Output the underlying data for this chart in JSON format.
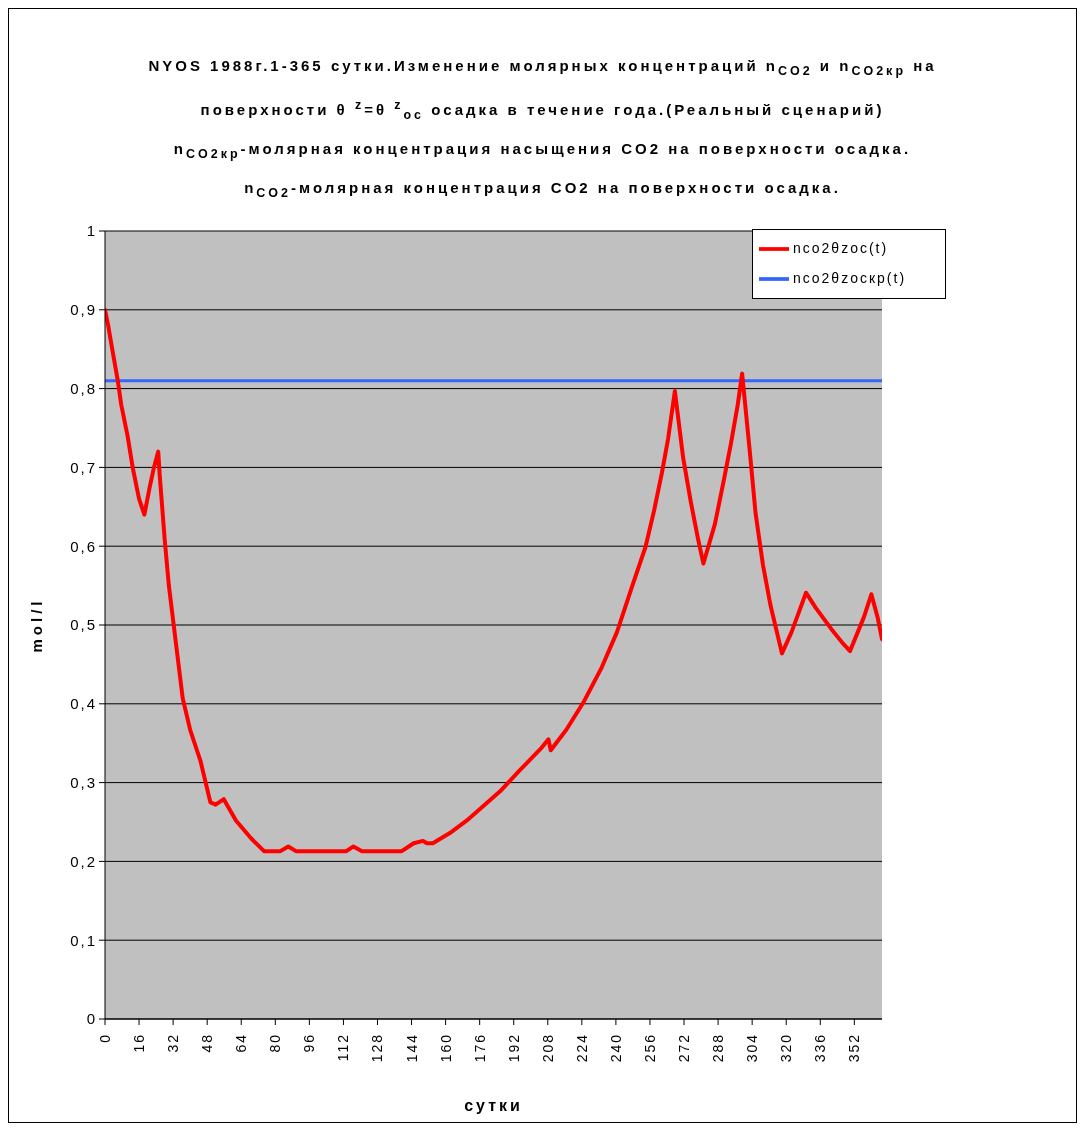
{
  "chart_data": {
    "type": "line",
    "title": "NYOS 1988г.1-365 сутки.Изменение молярных концентраций n$_{CO2}$ и n$_{CO2кр}$ на\nповерхности θ $^{z}$=θ $^{z}$$_{oc}$ осадка в течение года.(Реальный сценарий)\nn$_{CO2кр}$-молярная концентрация насыщения CO2 на поверхности осадка.\nn$_{CO2}$-молярная концентрация CO2 на поверхности осадка.",
    "xlabel": "сутки",
    "ylabel": "mol/l",
    "xlim": [
      0,
      365
    ],
    "xticks": [
      0,
      16,
      32,
      48,
      64,
      80,
      96,
      112,
      128,
      144,
      160,
      176,
      192,
      208,
      224,
      240,
      256,
      272,
      288,
      304,
      320,
      336,
      352
    ],
    "ylim": [
      0,
      1
    ],
    "yticks": [
      0,
      {
        "value": 0.1,
        "label": "0,1"
      },
      {
        "value": 0.2,
        "label": "0,2"
      },
      {
        "value": 0.3,
        "label": "0,3"
      },
      {
        "value": 0.4,
        "label": "0,4"
      },
      {
        "value": 0.5,
        "label": "0,5"
      },
      {
        "value": 0.6,
        "label": "0,6"
      },
      {
        "value": 0.7,
        "label": "0,7"
      },
      {
        "value": 0.8,
        "label": "0,8"
      },
      {
        "value": 0.9,
        "label": "0,9"
      },
      1
    ],
    "grid": "y",
    "legend": "top right",
    "line_style": "solid",
    "series": [
      {
        "name": "nco2θzocкр(t)",
        "color": "#3366ff",
        "x": [
          0,
          365
        ],
        "values": [
          0.81,
          0.81
        ]
      },
      {
        "name": "nco2θzoc(t)",
        "color": "#ff0000",
        "x": [
          0,
          1.5,
          3.4,
          6,
          7.6,
          10.6,
          13,
          16,
          18.5,
          21,
          23,
          25,
          25.7,
          28,
          30,
          32.9,
          36.5,
          40,
          44.8,
          49.5,
          52,
          55.8,
          61.5,
          68.7,
          74.7,
          82.4,
          86.1,
          89.7,
          113.4,
          116.7,
          120.7,
          139.4,
          145,
          149.4,
          151.2,
          154,
          162,
          170,
          178.4,
          185.6,
          195,
          204.7,
          208.3,
          209.4,
          216.7,
          225,
          233.3,
          240.5,
          247.5,
          253.9,
          258,
          261.6,
          264.5,
          267.7,
          271.6,
          275.2,
          278.6,
          281.1,
          286.5,
          290.8,
          294.1,
          297.2,
          299.3,
          302.8,
          305.6,
          309.1,
          312.7,
          318,
          322.5,
          329.3,
          333.8,
          340.9,
          346.5,
          350,
          356.5,
          360,
          362.9,
          365
        ],
        "values": [
          0.9,
          0.88,
          0.85,
          0.81,
          0.78,
          0.74,
          0.7,
          0.66,
          0.64,
          0.675,
          0.7,
          0.72,
          0.69,
          0.61,
          0.55,
          0.486,
          0.407,
          0.367,
          0.328,
          0.275,
          0.272,
          0.279,
          0.252,
          0.229,
          0.213,
          0.213,
          0.219,
          0.213,
          0.213,
          0.219,
          0.213,
          0.213,
          0.223,
          0.226,
          0.223,
          0.223,
          0.236,
          0.252,
          0.272,
          0.289,
          0.316,
          0.343,
          0.355,
          0.341,
          0.367,
          0.403,
          0.446,
          0.491,
          0.548,
          0.599,
          0.646,
          0.693,
          0.736,
          0.797,
          0.712,
          0.656,
          0.609,
          0.578,
          0.628,
          0.685,
          0.731,
          0.779,
          0.819,
          0.723,
          0.642,
          0.576,
          0.524,
          0.464,
          0.491,
          0.541,
          0.522,
          0.496,
          0.477,
          0.467,
          0.51,
          0.539,
          0.51,
          0.482
        ]
      }
    ]
  }
}
